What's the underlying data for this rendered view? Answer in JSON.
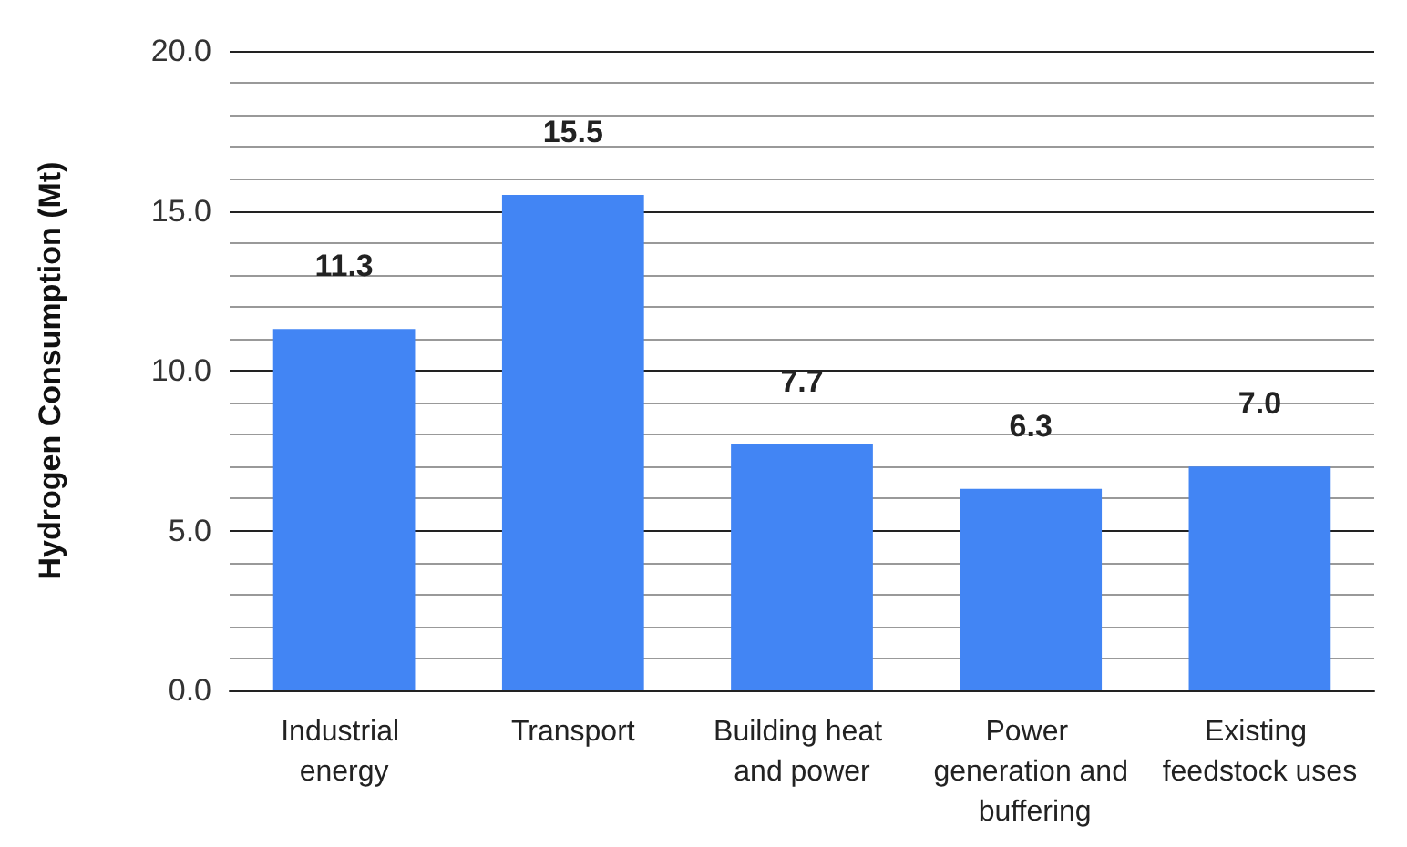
{
  "chart_data": {
    "type": "bar",
    "ylabel": "Hydrogen Consumption (Mt)",
    "categories": [
      "Industrial energy",
      "Transport",
      "Building heat and power",
      "Power generation and buffering",
      "Existing feedstock uses"
    ],
    "values": [
      11.3,
      15.5,
      7.7,
      6.3,
      7.0
    ],
    "value_labels": [
      "11.3",
      "15.5",
      "7.7",
      "6.3",
      "7.0"
    ],
    "color": "#4285f4",
    "ylim": [
      0,
      20
    ],
    "yticks": [
      {
        "value": 0,
        "label": "0.0"
      },
      {
        "value": 5,
        "label": "5.0"
      },
      {
        "value": 10,
        "label": "10.0"
      },
      {
        "value": 15,
        "label": "15.0"
      },
      {
        "value": 20,
        "label": "20.0"
      }
    ],
    "grid": true
  }
}
